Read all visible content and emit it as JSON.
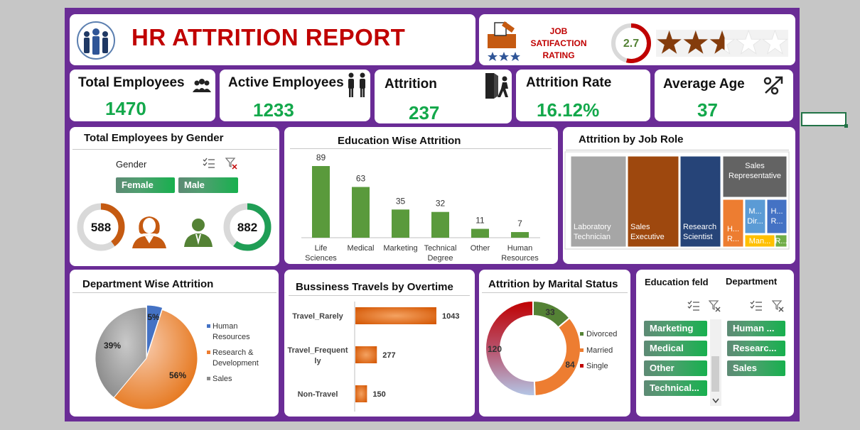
{
  "header": {
    "title": "HR ATTRITION REPORT",
    "job_rating_label": [
      "JOB",
      "SATIFACTION",
      "RATING"
    ],
    "job_rating_value": "2.7",
    "job_rating_score": 2.7,
    "job_rating_max": 5
  },
  "kpis": [
    {
      "label": "Total Employees",
      "value": "1470",
      "icon": "people-icon"
    },
    {
      "label": "Active Employees",
      "value": "1233",
      "icon": "standing-people-icon"
    },
    {
      "label": "Attrition",
      "value": "237",
      "icon": "exit-door-icon"
    },
    {
      "label": "Attrition Rate",
      "value": "16.12%",
      "icon": "arrow-up-icon"
    },
    {
      "label": "Average Age",
      "value": "37",
      "icon": "percent-icon"
    }
  ],
  "gender": {
    "title": "Total Employees by Gender",
    "slicer_label": "Gender",
    "buttons": [
      "Female",
      "Male"
    ],
    "female_value": "588",
    "female_share": 0.4,
    "male_value": "882",
    "male_share": 0.6
  },
  "education_chart": {
    "title": "Education Wise Attrition",
    "chart_data": {
      "type": "bar",
      "categories": [
        [
          "Life",
          "Sciences"
        ],
        [
          "Medical"
        ],
        [
          "Marketing"
        ],
        [
          "Technical",
          "Degree"
        ],
        [
          "Other"
        ],
        [
          "Human",
          "Resources"
        ]
      ],
      "values": [
        89,
        63,
        35,
        32,
        11,
        7
      ],
      "labels": [
        "89",
        "63",
        "35",
        "32",
        "11",
        "7"
      ]
    }
  },
  "job_role": {
    "title": "Attrition by Job Role",
    "tiles": [
      {
        "label": [
          "Laboratory",
          "Technician"
        ],
        "color": "#a6a6a6"
      },
      {
        "label": [
          "Sales",
          "Executive"
        ],
        "color": "#9e480e"
      },
      {
        "label": [
          "Research",
          "Scientist"
        ],
        "color": "#264478"
      },
      {
        "label": [
          "Sales",
          "Representative"
        ],
        "color": "#636363"
      },
      {
        "label": [
          "H...",
          "R..."
        ],
        "color": "#ed7d31"
      },
      {
        "label": [
          "M...",
          "Dir..."
        ],
        "color": "#5b9bd5"
      },
      {
        "label": [
          "H...",
          "R..."
        ],
        "color": "#4472c4"
      },
      {
        "label": [
          "Man..."
        ],
        "color": "#ffc000"
      },
      {
        "label": [
          "R..."
        ],
        "color": "#70ad47"
      }
    ]
  },
  "department": {
    "title": "Department Wise Attrition",
    "chart_data": {
      "type": "pie",
      "series": [
        {
          "name": "Human Resources",
          "value": 5,
          "label": "5%",
          "color": "#4472c4"
        },
        {
          "name": "Research & Development",
          "value": 56,
          "label": "56%",
          "color": "#ed7d31"
        },
        {
          "name": "Sales",
          "value": 39,
          "label": "39%",
          "color": "#8c8c8c"
        }
      ],
      "legend": [
        [
          "Human",
          "Resources"
        ],
        [
          "Research &",
          "Development"
        ],
        [
          "Sales"
        ]
      ]
    }
  },
  "travel": {
    "title": "Bussiness Travels by Overtime",
    "chart_data": {
      "type": "bar",
      "orientation": "horizontal",
      "categories": [
        [
          "Travel_Rarely"
        ],
        [
          "Travel_Frequent",
          "ly"
        ],
        [
          "Non-Travel"
        ]
      ],
      "values": [
        1043,
        277,
        150
      ],
      "labels": [
        "1043",
        "277",
        "150"
      ]
    }
  },
  "marital": {
    "title": "Attrition by Marital Status",
    "chart_data": {
      "type": "pie",
      "donut": true,
      "series": [
        {
          "name": "Divorced",
          "value": 33,
          "label": "33",
          "color": "#548235"
        },
        {
          "name": "Married",
          "value": 84,
          "label": "84",
          "color": "#ed7d31"
        },
        {
          "name": "Single",
          "value": 120,
          "label": "120",
          "color": "#c00000"
        }
      ]
    }
  },
  "slicers": {
    "education_title": "Education feld",
    "department_title": "Department",
    "education_items": [
      "Marketing",
      "Medical",
      "Other",
      "Technical..."
    ],
    "department_items": [
      "Human ...",
      "Researc...",
      "Sales"
    ]
  },
  "colors": {
    "frame": "#6a2c96",
    "kpi_green": "#13a84b",
    "title_red": "#c00000",
    "bar_green": "#548235",
    "bar_orange": "#e36c0a",
    "star_brown": "#843c0c"
  }
}
